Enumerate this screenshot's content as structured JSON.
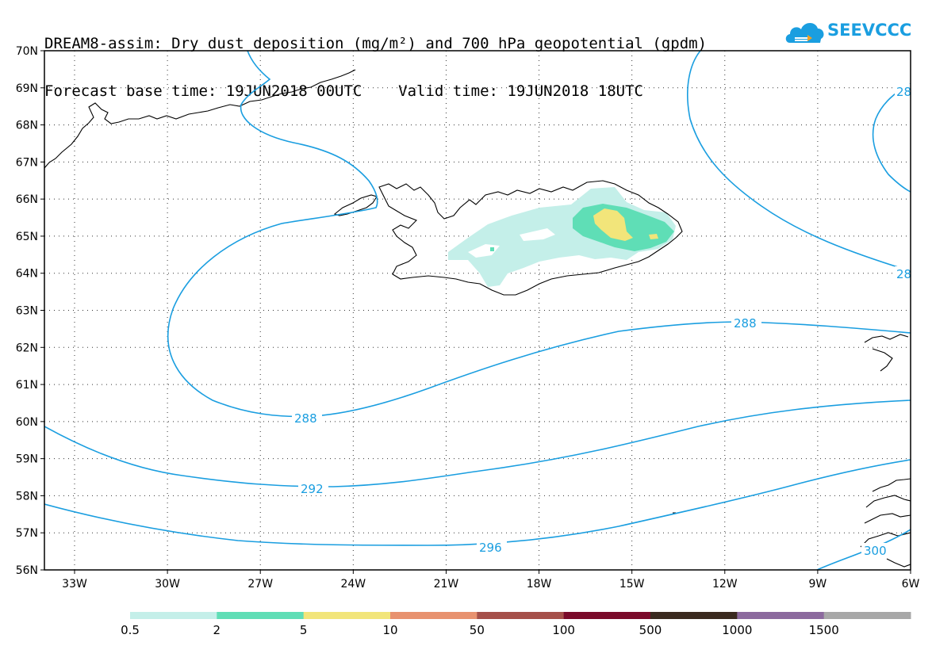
{
  "title": {
    "line1": "DREAM8-assim: Dry dust deposition (mg/m²) and 700 hPa geopotential (gpdm)",
    "line2_base_label": "Forecast base time: 19JUN2018 00UTC",
    "line2_valid_label": "Valid time: 19JUN2018 18UTC"
  },
  "logo": {
    "text": "SEEVCCC",
    "icon": "cloud-logo-icon",
    "color": "#1a9ee0"
  },
  "map": {
    "lat_labels": [
      "70N",
      "69N",
      "68N",
      "67N",
      "66N",
      "65N",
      "64N",
      "63N",
      "62N",
      "61N",
      "60N",
      "59N",
      "58N",
      "57N",
      "56N"
    ],
    "lon_labels": [
      "33W",
      "30W",
      "27W",
      "24W",
      "21W",
      "18W",
      "15W",
      "12W",
      "9W",
      "6W"
    ],
    "contour_color": "#1a9ee0",
    "contour_labels": [
      "288",
      "288",
      "292",
      "296",
      "300",
      "28",
      "28"
    ]
  },
  "legend": {
    "labels": [
      "0.5",
      "2",
      "5",
      "10",
      "50",
      "100",
      "500",
      "1000",
      "1500"
    ],
    "colors": [
      "#c4efe9",
      "#5fdeb6",
      "#f2e57a",
      "#e8926f",
      "#a5504a",
      "#7a0a2a",
      "#3a2a1f",
      "#8c6a9e",
      "#a8a8a8"
    ]
  }
}
